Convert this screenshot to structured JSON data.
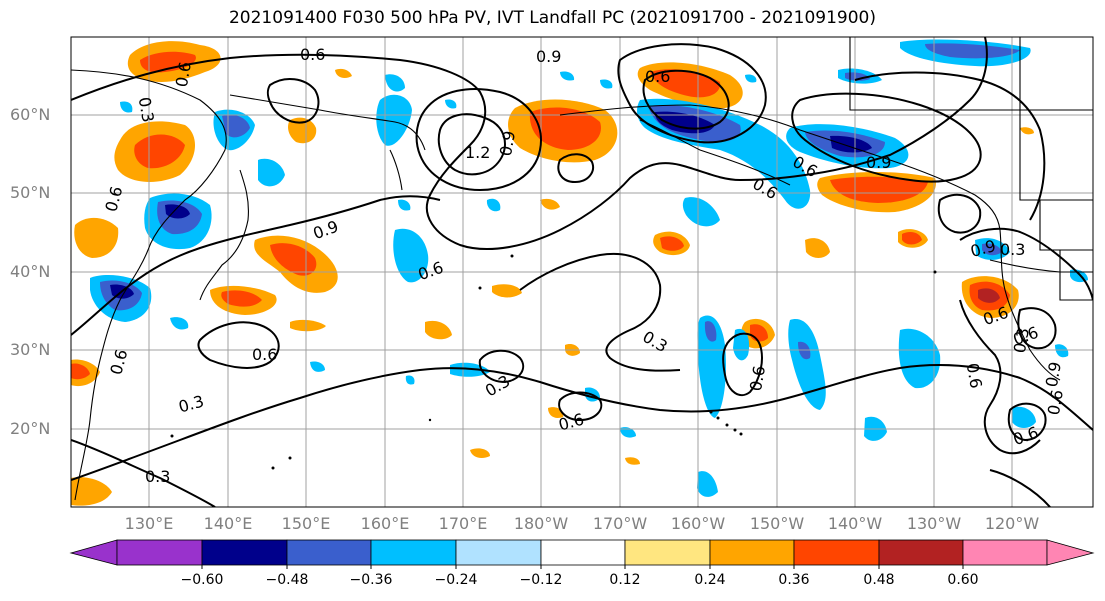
{
  "title": "2021091400 F030 500 hPa PV, IVT Landfall PC (2021091700 - 2021091900)",
  "map": {
    "lat_labels": [
      "60°N",
      "50°N",
      "40°N",
      "30°N",
      "20°N"
    ],
    "lon_labels": [
      "130°E",
      "140°E",
      "150°E",
      "160°E",
      "170°E",
      "180°W",
      "170°W",
      "160°W",
      "150°W",
      "140°W",
      "130°W",
      "120°W"
    ],
    "contour_labels": [
      "0.6",
      "0.6",
      "0.9",
      "0.3",
      "0.6",
      "1.2",
      "0.9",
      "0.6",
      "0.9",
      "0.6",
      "0.6",
      "0.9",
      "0.6",
      "0.6",
      "0.3",
      "0.6",
      "0.3",
      "0.3",
      "0.6",
      "0.6",
      "0.6",
      "0.3",
      "0.9",
      "0.3",
      "0.6",
      "0.6",
      "0.6",
      "0.9",
      "0.6",
      "0.3"
    ],
    "colors": {
      "contour": "#000000",
      "gridline": "#a0a0a0",
      "tick_label": "#808080"
    }
  },
  "colorbar": {
    "tick_labels": [
      "−0.60",
      "−0.48",
      "−0.36",
      "−0.24",
      "−0.12",
      "0.12",
      "0.24",
      "0.36",
      "0.48",
      "0.60"
    ],
    "colors": [
      "#9932cc",
      "#00008b",
      "#3a5fcd",
      "#00bfff",
      "#b0e2ff",
      "#ffffff",
      "#ffe680",
      "#ffa500",
      "#ff4500",
      "#b22222",
      "#ff85b3"
    ]
  }
}
